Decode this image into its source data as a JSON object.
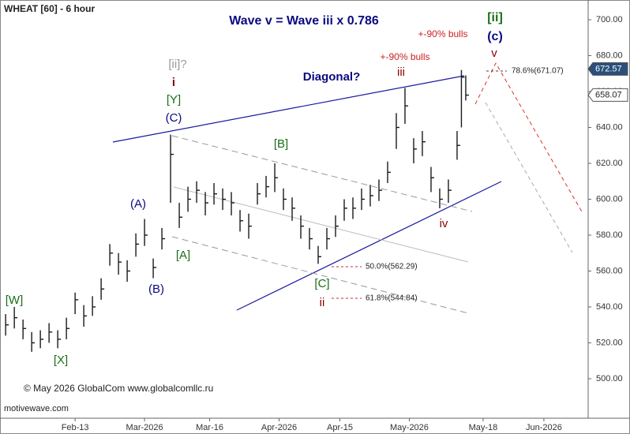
{
  "chart_data": {
    "type": "ohlc",
    "title": "WHEAT [60] - 6 hour",
    "subtitle": "Wave v = Wave iii x 0.786",
    "copyright": "© May 2026 GlobalCom www.globalcomllc.ru",
    "watermark": "motivewave.com",
    "bar_color": "#1a1a1a",
    "x": [
      28,
      30,
      32,
      34,
      36,
      38,
      40,
      42,
      44,
      46,
      48,
      50,
      52,
      54,
      56,
      58,
      60,
      62,
      64,
      66,
      68,
      70,
      72,
      74,
      76,
      78,
      80,
      82,
      84,
      86,
      88,
      90,
      92,
      94,
      96,
      98,
      100,
      102,
      104,
      106,
      108,
      110,
      112,
      114,
      116,
      118,
      120,
      122,
      124,
      126,
      128,
      130,
      132,
      133,
      134
    ],
    "high": [
      536,
      540,
      533,
      526,
      527,
      531,
      527,
      534,
      548,
      541,
      546,
      556,
      575,
      570,
      566,
      581,
      589,
      567,
      584,
      636,
      598,
      607,
      610,
      604,
      609,
      606,
      604,
      594,
      592,
      609,
      613,
      620,
      606,
      601,
      591,
      584,
      574,
      584,
      591,
      600,
      601,
      606,
      608,
      611,
      621,
      648,
      662,
      634,
      638,
      618,
      606,
      611,
      638,
      672,
      669
    ],
    "low": [
      524,
      528,
      522,
      515,
      517,
      520,
      517,
      522,
      536,
      529,
      535,
      544,
      563,
      558,
      554,
      568,
      574,
      556,
      572,
      598,
      584,
      593,
      598,
      591,
      597,
      594,
      591,
      582,
      578,
      597,
      601,
      604,
      594,
      588,
      578,
      572,
      564,
      572,
      579,
      588,
      589,
      594,
      596,
      599,
      609,
      628,
      642,
      620,
      624,
      604,
      595,
      598,
      622,
      640,
      655
    ],
    "close": [
      530,
      534,
      528,
      520,
      522,
      526,
      522,
      528,
      544,
      535,
      540,
      550,
      570,
      565,
      560,
      575,
      580,
      562,
      578,
      625,
      590,
      600,
      605,
      598,
      603,
      600,
      598,
      588,
      585,
      603,
      607,
      612,
      600,
      595,
      585,
      578,
      568,
      578,
      585,
      595,
      595,
      600,
      602,
      605,
      615,
      640,
      652,
      628,
      632,
      612,
      600,
      605,
      630,
      668,
      658
    ],
    "xlim": [
      26.7,
      162.2
    ],
    "xticks": [
      {
        "value": 44,
        "label": "Feb-13"
      },
      {
        "value": 60,
        "label": "Mar-2026"
      },
      {
        "value": 75,
        "label": "Mar-16"
      },
      {
        "value": 91,
        "label": "Apr-2026"
      },
      {
        "value": 105,
        "label": "Apr-15"
      },
      {
        "value": 121,
        "label": "May-2026"
      },
      {
        "value": 138,
        "label": "May-18"
      },
      {
        "value": 152,
        "label": "Jun-2026"
      }
    ],
    "ylim": [
      478,
      711
    ],
    "yticks": [
      {
        "value": 500,
        "label": "500.00"
      },
      {
        "value": 520,
        "label": "520.00"
      },
      {
        "value": 540,
        "label": "540.00"
      },
      {
        "value": 560,
        "label": "560.00"
      },
      {
        "value": 580,
        "label": "580.00"
      },
      {
        "value": 600,
        "label": "600.00"
      },
      {
        "value": 620,
        "label": "620.00"
      },
      {
        "value": 640,
        "label": "640.00"
      },
      {
        "value": 660,
        "label": "660.00"
      },
      {
        "value": 680,
        "label": "680.00"
      },
      {
        "value": 700,
        "label": "700.00"
      }
    ],
    "last_price": 672.57,
    "prev_price": 658.07,
    "annotations": [
      {
        "text": "Diagonal?",
        "color": "#0a0a80"
      },
      {
        "text": "[ii]?",
        "color": "#9a9a9a"
      },
      {
        "text": "i",
        "color": "#8b0000"
      },
      {
        "text": "[Y]",
        "color": "#1a6e1a"
      },
      {
        "text": "(C)",
        "color": "#0a0a80"
      },
      {
        "text": "(A)",
        "color": "#0a0a80"
      },
      {
        "text": "(B)",
        "color": "#0a0a80"
      },
      {
        "text": "[W]",
        "color": "#1a6e1a"
      },
      {
        "text": "[X]",
        "color": "#1a6e1a"
      },
      {
        "text": "[A]",
        "color": "#1a6e1a"
      },
      {
        "text": "[B]",
        "color": "#1a6e1a"
      },
      {
        "text": "[C]",
        "color": "#1a6e1a"
      },
      {
        "text": "ii",
        "color": "#8b0000"
      },
      {
        "text": "iii",
        "color": "#8b0000"
      },
      {
        "text": "iv",
        "color": "#8b0000"
      },
      {
        "text": "v",
        "color": "#8b0000"
      },
      {
        "text": "(c)",
        "color": "#0a0a80"
      },
      {
        "text": "[ii]",
        "color": "#1a6e1a"
      },
      {
        "text": "+-90% bulls",
        "color": "#cc2222"
      },
      {
        "text": "+-90% bulls",
        "color": "#cc2222"
      },
      {
        "text": "78.6%(671.07)",
        "color": "#222222"
      },
      {
        "text": "50.0%(562.29)",
        "color": "#222222"
      },
      {
        "text": "61.8%(544.84)",
        "color": "#222222"
      }
    ]
  }
}
